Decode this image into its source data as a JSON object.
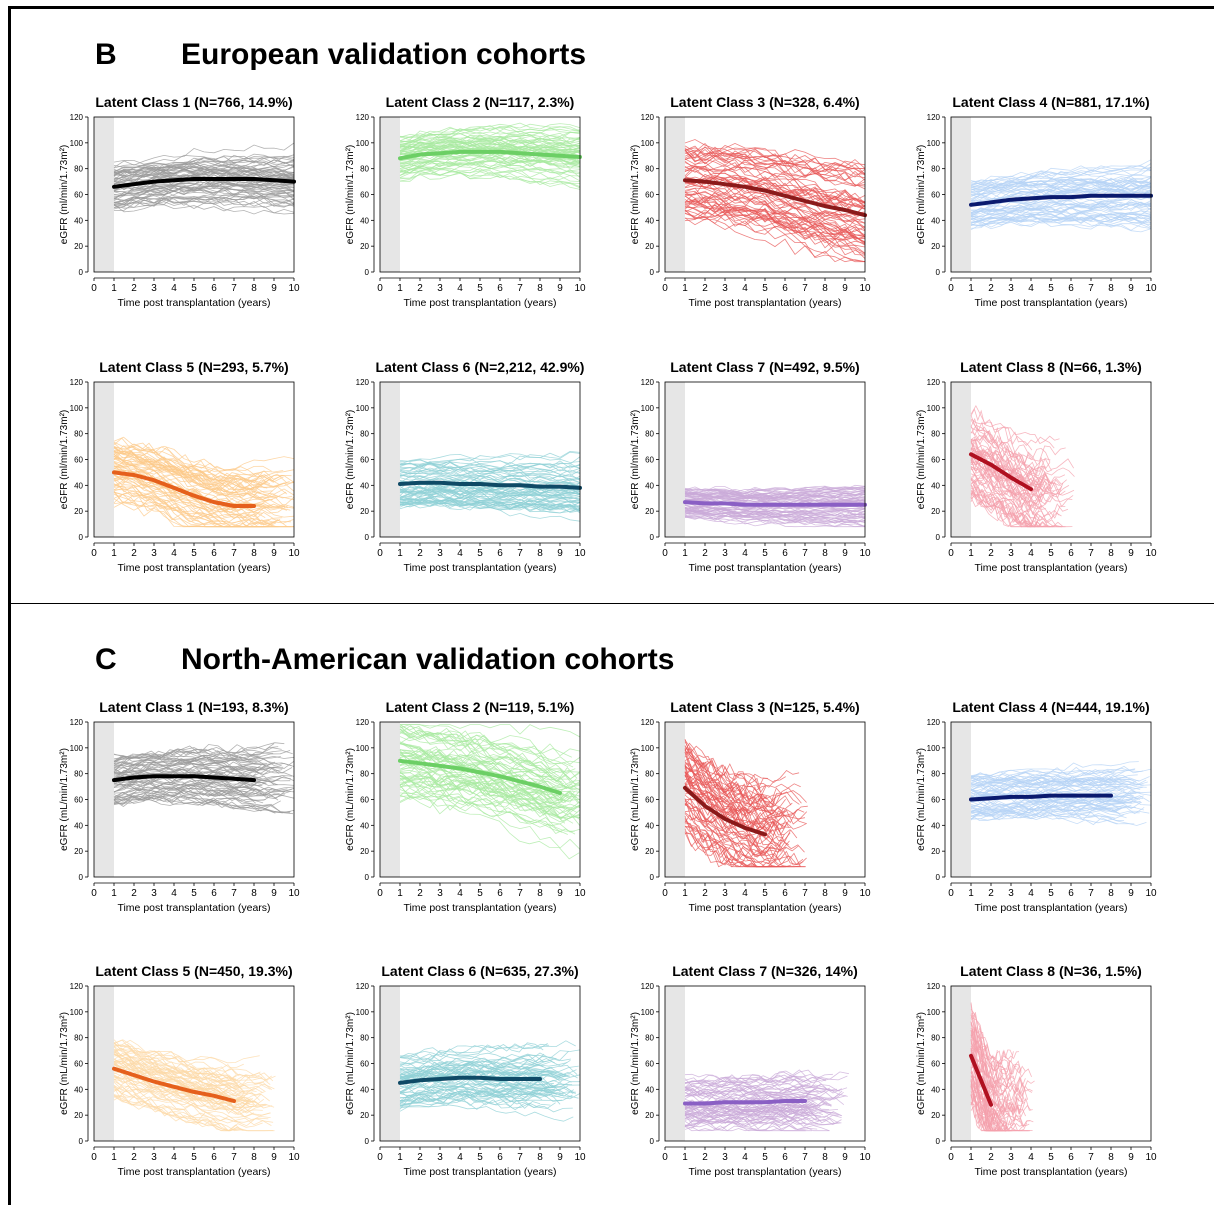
{
  "sections": [
    {
      "letter": "B",
      "heading": "European validation cohorts",
      "ylabel": "eGFR (ml/min/1.73m²)"
    },
    {
      "letter": "C",
      "heading": "North-American validation cohorts",
      "ylabel": "eGFR (mL/min/1.73m²)"
    }
  ],
  "xlabel": "Time post transplantation (years)",
  "chart_data": [
    {
      "type": "line",
      "title": "Latent Class 1 (N=766, 14.9%)",
      "xlabel": "Time post transplantation (years)",
      "ylabel": "eGFR (ml/min/1.73m²)",
      "xlim": [
        0,
        10
      ],
      "ylim": [
        0,
        120
      ],
      "shaded_x": [
        0,
        1
      ],
      "series": [
        {
          "x": [
            1,
            2,
            3,
            4,
            5,
            6,
            7,
            8,
            9,
            10
          ],
          "values": [
            66,
            68,
            70,
            71,
            72,
            72,
            72,
            72,
            71,
            70
          ]
        }
      ],
      "band": [
        55,
        90
      ],
      "thin_color": "#9a9a9a",
      "mean_color": "#000000"
    },
    {
      "type": "line",
      "title": "Latent Class 2 (N=117, 2.3%)",
      "xlabel": "Time post transplantation (years)",
      "ylabel": "eGFR (ml/min/1.73m²)",
      "xlim": [
        0,
        10
      ],
      "ylim": [
        0,
        120
      ],
      "shaded_x": [
        0,
        1
      ],
      "series": [
        {
          "x": [
            1,
            2,
            3,
            4,
            5,
            6,
            7,
            8,
            9,
            10
          ],
          "values": [
            88,
            91,
            92,
            93,
            93,
            93,
            92,
            91,
            90,
            89
          ]
        }
      ],
      "band": [
        75,
        108
      ],
      "thin_color": "#a8eaa0",
      "mean_color": "#6ccf65"
    },
    {
      "type": "line",
      "title": "Latent Class 3 (N=328, 6.4%)",
      "xlabel": "Time post transplantation (years)",
      "ylabel": "eGFR (ml/min/1.73m²)",
      "xlim": [
        0,
        10
      ],
      "ylim": [
        0,
        120
      ],
      "shaded_x": [
        0,
        1
      ],
      "series": [
        {
          "x": [
            1,
            2,
            3,
            4,
            5,
            6,
            7,
            8,
            9,
            10
          ],
          "values": [
            71,
            70,
            68,
            66,
            63,
            59,
            55,
            51,
            48,
            44
          ]
        }
      ],
      "band": [
        45,
        105
      ],
      "thin_color": "#e85a5a",
      "mean_color": "#8b1a1a"
    },
    {
      "type": "line",
      "title": "Latent Class 4 (N=881, 17.1%)",
      "xlabel": "Time post transplantation (years)",
      "ylabel": "eGFR (ml/min/1.73m²)",
      "xlim": [
        0,
        10
      ],
      "ylim": [
        0,
        120
      ],
      "shaded_x": [
        0,
        1
      ],
      "series": [
        {
          "x": [
            1,
            2,
            3,
            4,
            5,
            6,
            7,
            8,
            9,
            10
          ],
          "values": [
            52,
            54,
            56,
            57,
            58,
            58,
            59,
            59,
            59,
            59
          ]
        }
      ],
      "band": [
        40,
        75
      ],
      "thin_color": "#b5d3f5",
      "mean_color": "#0a1a6e"
    },
    {
      "type": "line",
      "title": "Latent Class 5 (N=293, 5.7%)",
      "xlabel": "Time post transplantation (years)",
      "ylabel": "eGFR (ml/min/1.73m²)",
      "xlim": [
        0,
        10
      ],
      "ylim": [
        0,
        120
      ],
      "shaded_x": [
        0,
        1
      ],
      "series": [
        {
          "x": [
            1,
            2,
            3,
            4,
            5,
            6,
            7,
            8
          ],
          "values": [
            50,
            48,
            44,
            38,
            32,
            27,
            24,
            24
          ]
        }
      ],
      "band": [
        30,
        80
      ],
      "thin_color": "#fcc98a",
      "mean_color": "#e5601c"
    },
    {
      "type": "line",
      "title": "Latent Class 6 (N=2,212, 42.9%)",
      "xlabel": "Time post transplantation (years)",
      "ylabel": "eGFR (ml/min/1.73m²)",
      "xlim": [
        0,
        10
      ],
      "ylim": [
        0,
        120
      ],
      "shaded_x": [
        0,
        1
      ],
      "series": [
        {
          "x": [
            1,
            2,
            3,
            4,
            5,
            6,
            7,
            8,
            9,
            10
          ],
          "values": [
            41,
            42,
            42,
            41,
            41,
            40,
            40,
            39,
            39,
            38
          ]
        }
      ],
      "band": [
        25,
        60
      ],
      "thin_color": "#8fd0d5",
      "mean_color": "#0f4a66"
    },
    {
      "type": "line",
      "title": "Latent Class 7 (N=492, 9.5%)",
      "xlabel": "Time post transplantation (years)",
      "ylabel": "eGFR (ml/min/1.73m²)",
      "xlim": [
        0,
        10
      ],
      "ylim": [
        0,
        120
      ],
      "shaded_x": [
        0,
        1
      ],
      "series": [
        {
          "x": [
            1,
            2,
            3,
            4,
            5,
            6,
            7,
            8,
            9,
            10
          ],
          "values": [
            27,
            26,
            26,
            25,
            25,
            25,
            25,
            25,
            25,
            25
          ]
        }
      ],
      "band": [
        15,
        40
      ],
      "thin_color": "#c9a9d8",
      "mean_color": "#8a5fc4"
    },
    {
      "type": "line",
      "title": "Latent Class 8 (N=66, 1.3%)",
      "xlabel": "Time post transplantation (years)",
      "ylabel": "eGFR (ml/min/1.73m²)",
      "xlim": [
        0,
        10
      ],
      "ylim": [
        0,
        120
      ],
      "shaded_x": [
        0,
        1
      ],
      "series": [
        {
          "x": [
            1,
            2,
            3,
            4
          ],
          "values": [
            64,
            56,
            46,
            37
          ]
        }
      ],
      "band": [
        40,
        110
      ],
      "thin_color": "#f4a0ac",
      "mean_color": "#b01020"
    },
    {
      "type": "line",
      "title": "Latent Class 1 (N=193, 8.3%)",
      "xlabel": "Time post transplantation (years)",
      "ylabel": "eGFR (mL/min/1.73m²)",
      "xlim": [
        0,
        10
      ],
      "ylim": [
        0,
        120
      ],
      "shaded_x": [
        0,
        1
      ],
      "series": [
        {
          "x": [
            1,
            2,
            3,
            4,
            5,
            6,
            7,
            8
          ],
          "values": [
            75,
            77,
            78,
            78,
            78,
            77,
            76,
            75
          ]
        }
      ],
      "band": [
        60,
        98
      ],
      "thin_color": "#9a9a9a",
      "mean_color": "#000000"
    },
    {
      "type": "line",
      "title": "Latent Class 2 (N=119, 5.1%)",
      "xlabel": "Time post transplantation (years)",
      "ylabel": "eGFR (mL/min/1.73m²)",
      "xlim": [
        0,
        10
      ],
      "ylim": [
        0,
        120
      ],
      "shaded_x": [
        0,
        1
      ],
      "series": [
        {
          "x": [
            1,
            2,
            3,
            4,
            5,
            6,
            7,
            8,
            9
          ],
          "values": [
            90,
            88,
            86,
            84,
            81,
            78,
            74,
            70,
            65
          ]
        }
      ],
      "band": [
        50,
        110
      ],
      "thin_color": "#a8eaa0",
      "mean_color": "#6ccf65"
    },
    {
      "type": "line",
      "title": "Latent Class 3 (N=125, 5.4%)",
      "xlabel": "Time post transplantation (years)",
      "ylabel": "eGFR (mL/min/1.73m²)",
      "xlim": [
        0,
        10
      ],
      "ylim": [
        0,
        120
      ],
      "shaded_x": [
        0,
        1
      ],
      "series": [
        {
          "x": [
            1,
            2,
            3,
            4,
            5
          ],
          "values": [
            69,
            55,
            45,
            38,
            33
          ]
        }
      ],
      "band": [
        30,
        105
      ],
      "thin_color": "#e85a5a",
      "mean_color": "#8b1a1a"
    },
    {
      "type": "line",
      "title": "Latent Class 4 (N=444, 19.1%)",
      "xlabel": "Time post transplantation (years)",
      "ylabel": "eGFR (mL/min/1.73m²)",
      "xlim": [
        0,
        10
      ],
      "ylim": [
        0,
        120
      ],
      "shaded_x": [
        0,
        1
      ],
      "series": [
        {
          "x": [
            1,
            2,
            3,
            4,
            5,
            6,
            7,
            8
          ],
          "values": [
            60,
            61,
            62,
            62,
            63,
            63,
            63,
            63
          ]
        }
      ],
      "band": [
        45,
        80
      ],
      "thin_color": "#b5d3f5",
      "mean_color": "#0a1a6e"
    },
    {
      "type": "line",
      "title": "Latent Class 5 (N=450, 19.3%)",
      "xlabel": "Time post transplantation (years)",
      "ylabel": "eGFR (mL/min/1.73m²)",
      "xlim": [
        0,
        10
      ],
      "ylim": [
        0,
        120
      ],
      "shaded_x": [
        0,
        1
      ],
      "series": [
        {
          "x": [
            1,
            2,
            3,
            4,
            5,
            6,
            7
          ],
          "values": [
            56,
            51,
            46,
            42,
            38,
            35,
            31
          ]
        }
      ],
      "band": [
        30,
        75
      ],
      "thin_color": "#fcd9a8",
      "mean_color": "#e5601c"
    },
    {
      "type": "line",
      "title": "Latent Class 6 (N=635, 27.3%)",
      "xlabel": "Time post transplantation (years)",
      "ylabel": "eGFR (mL/min/1.73m²)",
      "xlim": [
        0,
        10
      ],
      "ylim": [
        0,
        120
      ],
      "shaded_x": [
        0,
        1
      ],
      "series": [
        {
          "x": [
            1,
            2,
            3,
            4,
            5,
            6,
            7,
            8
          ],
          "values": [
            45,
            47,
            48,
            49,
            49,
            48,
            48,
            48
          ]
        }
      ],
      "band": [
        30,
        70
      ],
      "thin_color": "#8fd0d5",
      "mean_color": "#0f4a66"
    },
    {
      "type": "line",
      "title": "Latent Class 7 (N=326, 14%)",
      "xlabel": "Time post transplantation (years)",
      "ylabel": "eGFR (mL/min/1.73m²)",
      "xlim": [
        0,
        10
      ],
      "ylim": [
        0,
        120
      ],
      "shaded_x": [
        0,
        1
      ],
      "series": [
        {
          "x": [
            1,
            2,
            3,
            4,
            5,
            6,
            7
          ],
          "values": [
            29,
            29,
            30,
            30,
            30,
            31,
            31
          ]
        }
      ],
      "band": [
        15,
        55
      ],
      "thin_color": "#c9a9d8",
      "mean_color": "#8a5fc4"
    },
    {
      "type": "line",
      "title": "Latent Class 8 (N=36, 1.5%)",
      "xlabel": "Time post transplantation (years)",
      "ylabel": "eGFR (mL/min/1.73m²)",
      "xlim": [
        0,
        10
      ],
      "ylim": [
        0,
        120
      ],
      "shaded_x": [
        0,
        1
      ],
      "series": [
        {
          "x": [
            1,
            1.5,
            2
          ],
          "values": [
            66,
            47,
            28
          ]
        }
      ],
      "band": [
        20,
        95
      ],
      "thin_color": "#f4a0ac",
      "mean_color": "#b01020"
    }
  ]
}
